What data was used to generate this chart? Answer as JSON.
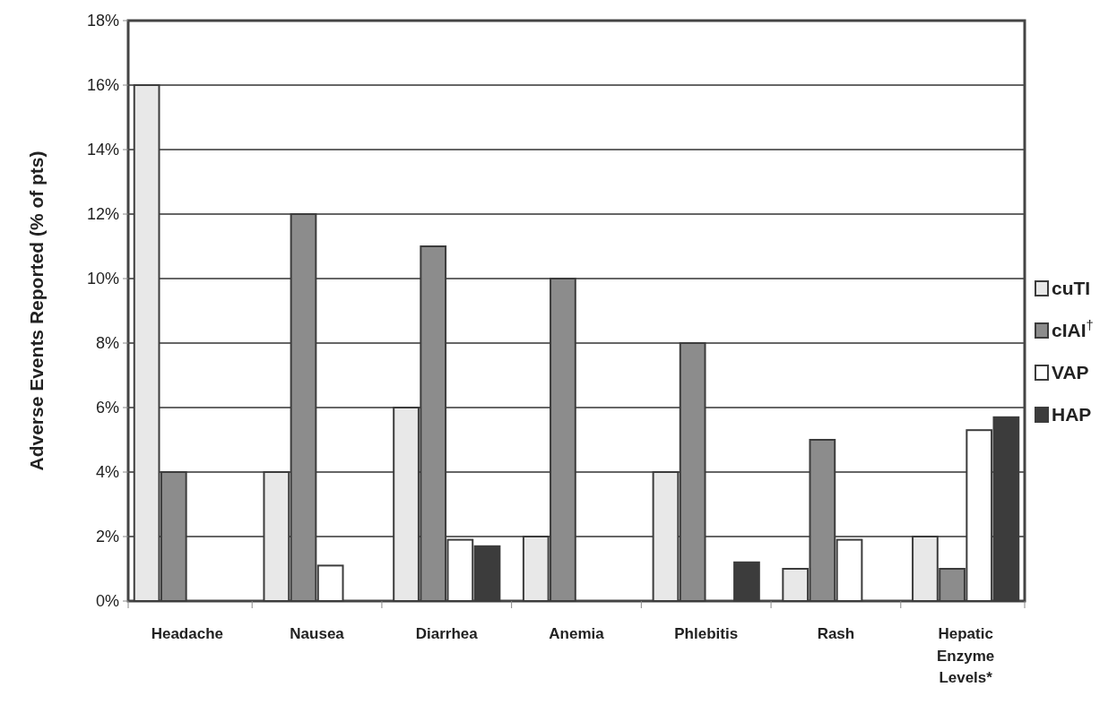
{
  "chart_data": {
    "type": "bar",
    "ylabel": "Adverse Events Reported (% of pts)",
    "categories": [
      "Headache",
      "Nausea",
      "Diarrhea",
      "Anemia",
      "Phlebitis",
      "Rash",
      "Hepatic Enzyme Levels*"
    ],
    "series": [
      {
        "name": "cuTI",
        "color": "#e8e8e8",
        "values": [
          16,
          4,
          6,
          2,
          4,
          1,
          2
        ]
      },
      {
        "name": "cIAI$^{†}$",
        "color": "#8c8c8c",
        "values": [
          4,
          12,
          11,
          10,
          8,
          5,
          1
        ]
      },
      {
        "name": "VAP",
        "color": "#ffffff",
        "values": [
          null,
          1.1,
          1.9,
          null,
          null,
          1.9,
          5.3
        ]
      },
      {
        "name": "HAP",
        "color": "#3c3c3c",
        "values": [
          null,
          null,
          1.7,
          null,
          1.2,
          null,
          5.7
        ]
      }
    ],
    "ylim": [
      0,
      18
    ],
    "yticks": [
      {
        "value": 0,
        "label": "0%"
      },
      {
        "value": 2,
        "label": "2%"
      },
      {
        "value": 4,
        "label": "4%"
      },
      {
        "value": 6,
        "label": "6%"
      },
      {
        "value": 8,
        "label": "8%"
      },
      {
        "value": 10,
        "label": "10%"
      },
      {
        "value": 12,
        "label": "12%"
      },
      {
        "value": 14,
        "label": "14%"
      },
      {
        "value": 16,
        "label": "16%"
      },
      {
        "value": 18,
        "label": "18%"
      }
    ],
    "grid": "y",
    "legend": "right"
  }
}
